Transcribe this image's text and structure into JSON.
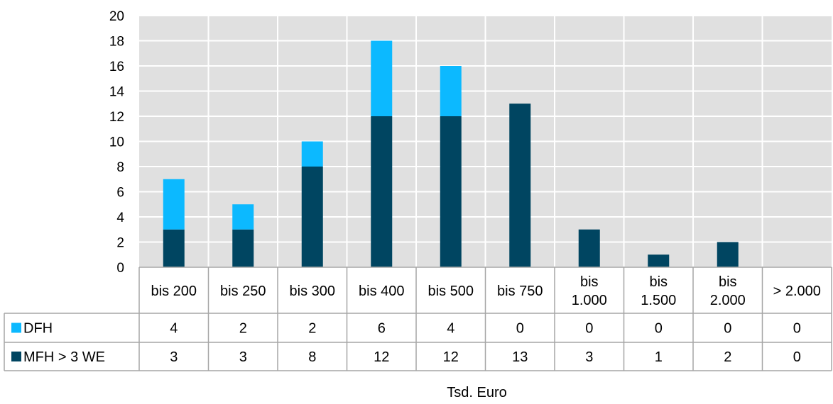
{
  "colors": {
    "plot_bg": "#e0e0e0",
    "grid": "#ffffff",
    "table_border": "#a6a6a6"
  },
  "chart_data": {
    "type": "bar",
    "stacked": true,
    "categories": [
      [
        "bis 200"
      ],
      [
        "bis 250"
      ],
      [
        "bis 300"
      ],
      [
        "bis 400"
      ],
      [
        "bis 500"
      ],
      [
        "bis 750"
      ],
      [
        "bis",
        "1.000"
      ],
      [
        "bis",
        "1.500"
      ],
      [
        "bis",
        "2.000"
      ],
      [
        "> 2.000"
      ]
    ],
    "series": [
      {
        "name": "MFH > 3 WE",
        "color": "#004561",
        "values": [
          3,
          3,
          8,
          12,
          12,
          13,
          3,
          1,
          2,
          0
        ]
      },
      {
        "name": "DFH",
        "color": "#0cb9ff",
        "values": [
          4,
          2,
          2,
          6,
          4,
          0,
          0,
          0,
          0,
          0
        ]
      }
    ],
    "table_rows": [
      {
        "series_index": 1,
        "label": "DFH",
        "values": [
          "4",
          "2",
          "2",
          "6",
          "4",
          "0",
          "0",
          "0",
          "0",
          "0"
        ]
      },
      {
        "series_index": 0,
        "label": "MFH > 3 WE",
        "values": [
          "3",
          "3",
          "8",
          "12",
          "12",
          "13",
          "3",
          "1",
          "2",
          "0"
        ]
      }
    ],
    "y_ticks": [
      "0",
      "2",
      "4",
      "6",
      "8",
      "10",
      "12",
      "14",
      "16",
      "18",
      "20"
    ],
    "ylim": [
      0,
      20
    ],
    "grid": true,
    "xlabel": "Tsd. Euro",
    "ylabel": "",
    "title": ""
  }
}
